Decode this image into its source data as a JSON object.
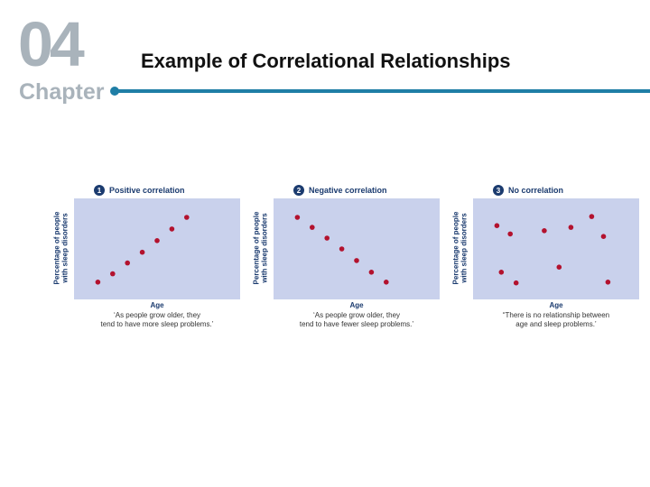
{
  "header": {
    "chapter_number": "04",
    "chapter_word": "Chapter",
    "title": "Example of Correlational Relationships"
  },
  "colors": {
    "chapter_text": "#a9b3bb",
    "rule": "#1f7ea6",
    "plot_background": "#c9d1ec",
    "dot": "#b3122e",
    "badge": "#1b3b6f",
    "label_text": "#1b3b6f"
  },
  "chart_data": [
    {
      "type": "scatter",
      "number": "1",
      "title": "Positive correlation",
      "xlabel": "Age",
      "ylabel": "Percentage of people\nwith sleep disorders",
      "caption": "‘As people grow older, they\ntend to have more sleep problems.’",
      "xlim": [
        0,
        10
      ],
      "ylim": [
        0,
        10
      ],
      "points": [
        [
          1,
          1
        ],
        [
          2,
          2
        ],
        [
          3,
          3.3
        ],
        [
          4,
          4.6
        ],
        [
          5,
          6
        ],
        [
          6,
          7.4
        ],
        [
          7,
          8.8
        ]
      ]
    },
    {
      "type": "scatter",
      "number": "2",
      "title": "Negative correlation",
      "xlabel": "Age",
      "ylabel": "Percentage of people\nwith sleep disorders",
      "caption": "‘As people grow older, they\ntend to have fewer sleep problems.’",
      "xlim": [
        0,
        10
      ],
      "ylim": [
        0,
        10
      ],
      "points": [
        [
          1,
          8.8
        ],
        [
          2,
          7.6
        ],
        [
          3,
          6.3
        ],
        [
          4,
          5
        ],
        [
          5,
          3.6
        ],
        [
          6,
          2.2
        ],
        [
          7,
          1
        ]
      ]
    },
    {
      "type": "scatter",
      "number": "3",
      "title": "No correlation",
      "xlabel": "Age",
      "ylabel": "Percentage of people\nwith sleep disorders",
      "caption": "“There is no relationship between\nage and sleep problems.’",
      "xlim": [
        0,
        10
      ],
      "ylim": [
        0,
        10
      ],
      "points": [
        [
          1,
          7.8
        ],
        [
          1.3,
          2.2
        ],
        [
          1.9,
          6.8
        ],
        [
          2.3,
          0.9
        ],
        [
          4.2,
          7.2
        ],
        [
          5.2,
          2.8
        ],
        [
          6,
          7.6
        ],
        [
          7.4,
          8.9
        ],
        [
          8.2,
          6.5
        ],
        [
          8.5,
          1
        ]
      ]
    }
  ]
}
